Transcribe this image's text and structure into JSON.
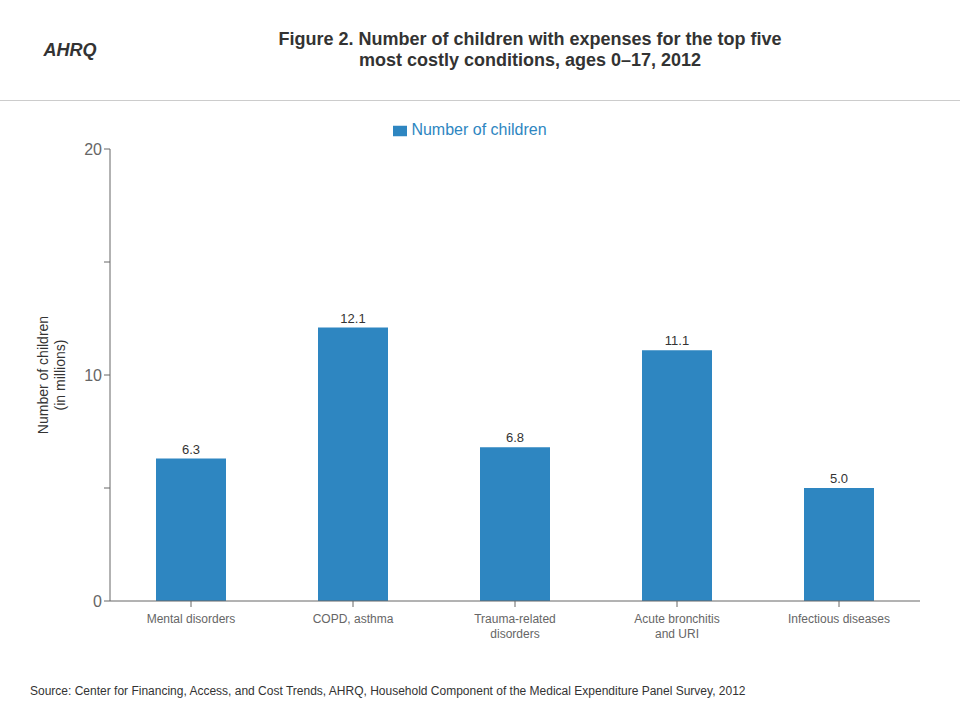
{
  "chart_data": {
    "type": "bar",
    "title": "Figure 2. Number of children with expenses for the top five\nmost costly conditions, ages 0–17, 2012",
    "ylabel": "Number of children\n(in millions)",
    "annotations": [
      "AHRQ",
      "Source: Center for Financing, Access, and Cost Trends, AHRQ, Household Component of the Medical Expenditure Panel Survey,  2012"
    ],
    "categories": [
      "Mental disorders",
      "COPD, asthma",
      "Trauma-related\ndisorders",
      "Acute bronchitis\nand URI",
      "Infectious diseases"
    ],
    "series": [
      {
        "name": "Number of children",
        "color": "#2e86c1",
        "values": [
          6.3,
          12.1,
          6.8,
          11.1,
          5.0
        ],
        "value_labels": [
          "6.3",
          "12.1",
          "6.8",
          "11.1",
          "5.0"
        ]
      }
    ],
    "ylim": [
      0,
      20
    ],
    "yticks": [
      0,
      {
        "value": 5,
        "label": ""
      },
      10,
      {
        "value": 15,
        "label": ""
      },
      20
    ],
    "grid": false,
    "legend": "top",
    "data_labels": true
  }
}
